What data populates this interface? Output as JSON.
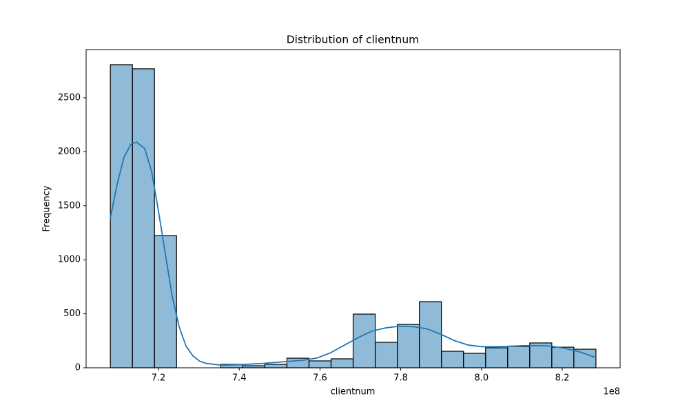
{
  "chart_data": {
    "type": "histogram",
    "title": "Distribution of clientnum",
    "x_label": "clientnum",
    "y_label": "Frequency",
    "x_offset_label": "1e8",
    "bins": [
      708082083,
      713548492,
      719014901,
      724481310,
      729947719,
      735414128,
      740880537,
      746346946,
      751813355,
      757279764,
      762746173,
      768212582,
      773678991,
      779145400,
      784611809,
      790078218,
      795544627,
      801011036,
      806477445,
      811943854,
      817410263,
      822876672,
      828343081
    ],
    "values": [
      2806,
      2768,
      1224,
      0,
      0,
      32,
      19,
      32,
      89,
      64,
      83,
      497,
      236,
      402,
      612,
      153,
      134,
      185,
      198,
      230,
      191,
      172
    ],
    "color": "rgba(31,119,180,0.5)",
    "edgecolor": "#000000",
    "kde": {
      "color": "#1f77b4",
      "x": [
        708050000,
        709760000,
        711470000,
        713170000,
        714540000,
        716590000,
        718290000,
        720000000,
        721710000,
        723410000,
        725120000,
        726830000,
        728530000,
        730240000,
        731950000,
        735360000,
        737060000,
        740480000,
        745600000,
        750720000,
        755840000,
        759250000,
        762660000,
        766080000,
        769490000,
        772900000,
        776310000,
        779730000,
        783140000,
        786550000,
        789970000,
        793380000,
        796790000,
        800200000,
        803620000,
        807030000,
        810440000,
        813860000,
        817270000,
        820680000,
        824100000,
        828360000
      ],
      "values": [
        1380,
        1700,
        1950,
        2070,
        2090,
        2030,
        1820,
        1450,
        1050,
        660,
        380,
        200,
        110,
        60,
        40,
        25,
        25,
        30,
        40,
        55,
        70,
        90,
        140,
        210,
        280,
        340,
        370,
        385,
        380,
        360,
        310,
        250,
        210,
        195,
        195,
        200,
        205,
        205,
        200,
        180,
        150,
        95
      ]
    },
    "xlim": [
      702080000,
      834330000
    ],
    "ylim": [
      0,
      2946
    ],
    "xticks": [
      {
        "value": 720000000,
        "label": "7.2"
      },
      {
        "value": 740000000,
        "label": "7.4"
      },
      {
        "value": 760000000,
        "label": "7.6"
      },
      {
        "value": 780000000,
        "label": "7.8"
      },
      {
        "value": 800000000,
        "label": "8.0"
      },
      {
        "value": 820000000,
        "label": "8.2"
      }
    ],
    "yticks": [
      0,
      500,
      1000,
      1500,
      2000,
      2500
    ],
    "grid": false
  }
}
